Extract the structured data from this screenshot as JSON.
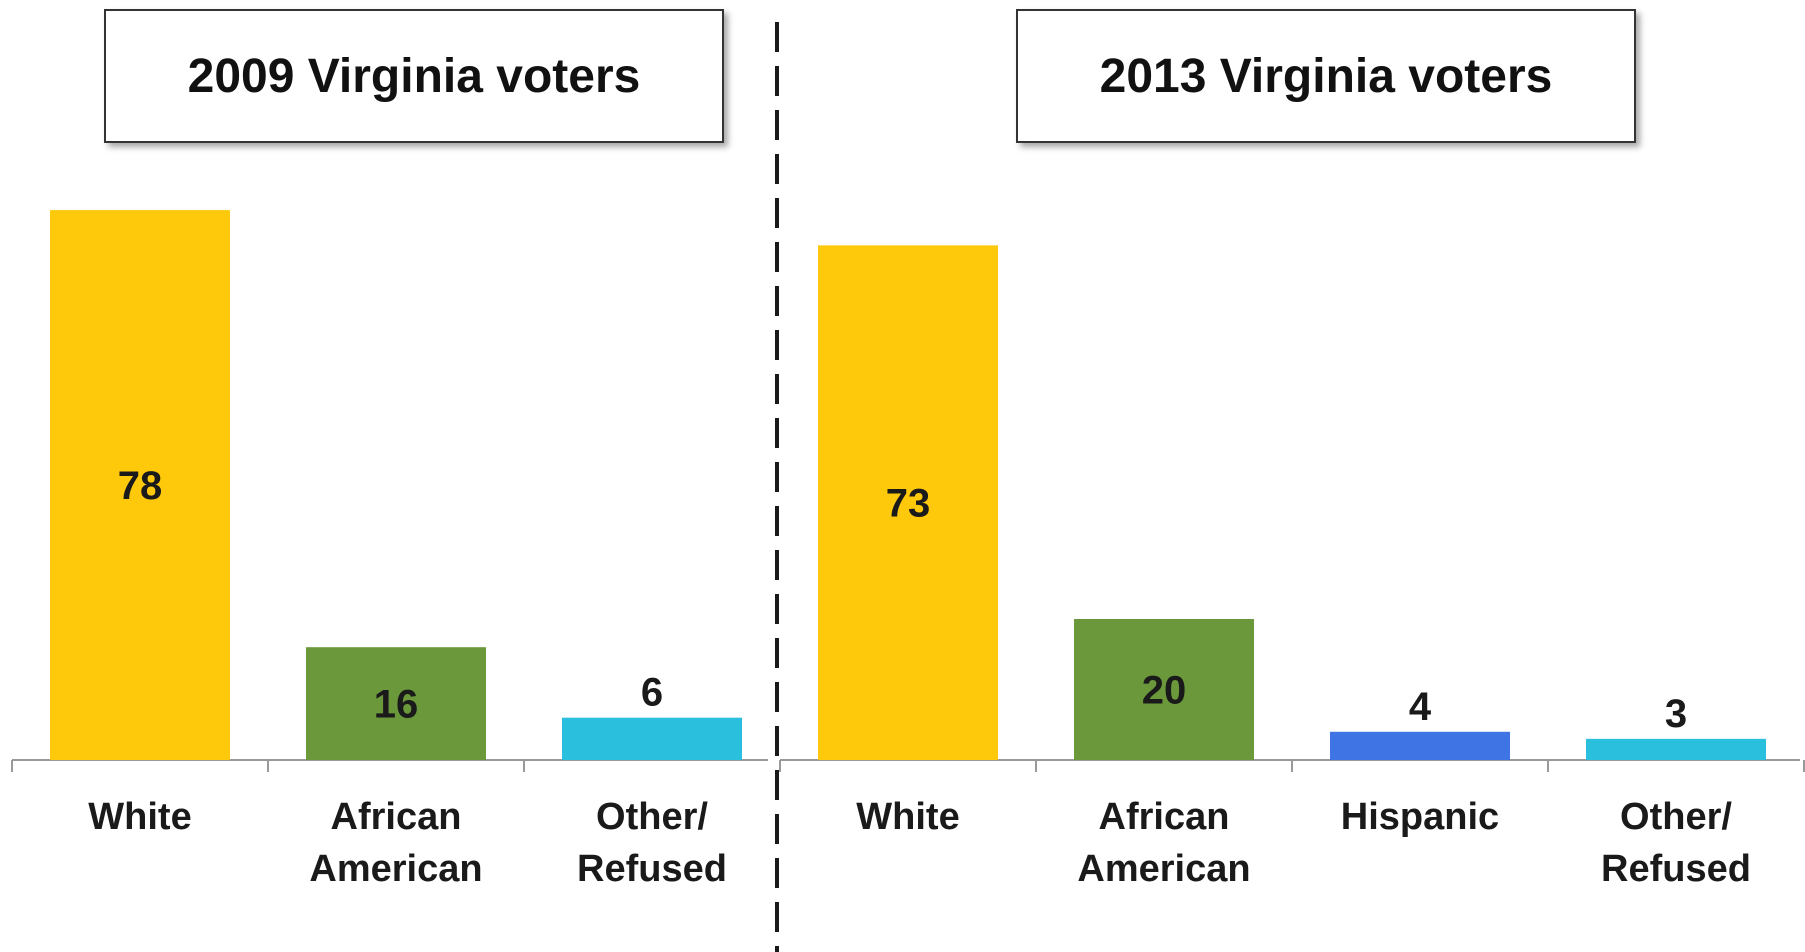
{
  "chart_data": [
    {
      "type": "bar",
      "title": "2009 Virginia voters",
      "categories": [
        [
          "White"
        ],
        [
          "African",
          "American"
        ],
        [
          "Other/",
          "Refused"
        ]
      ],
      "values": [
        78,
        16,
        6
      ],
      "colors": [
        "#FFC90B",
        "#6A983B",
        "#29BFDD"
      ],
      "ylim": [
        0,
        80
      ],
      "grid": false,
      "legend": "none"
    },
    {
      "type": "bar",
      "title": "2013 Virginia voters",
      "categories": [
        [
          "White"
        ],
        [
          "African",
          "American"
        ],
        [
          "Hispanic"
        ],
        [
          "Other/",
          "Refused"
        ]
      ],
      "values": [
        73,
        20,
        4,
        3
      ],
      "colors": [
        "#FFC90B",
        "#6A983B",
        "#3F74E5",
        "#29BFDD"
      ],
      "ylim": [
        0,
        80
      ],
      "grid": false,
      "legend": "none"
    }
  ]
}
